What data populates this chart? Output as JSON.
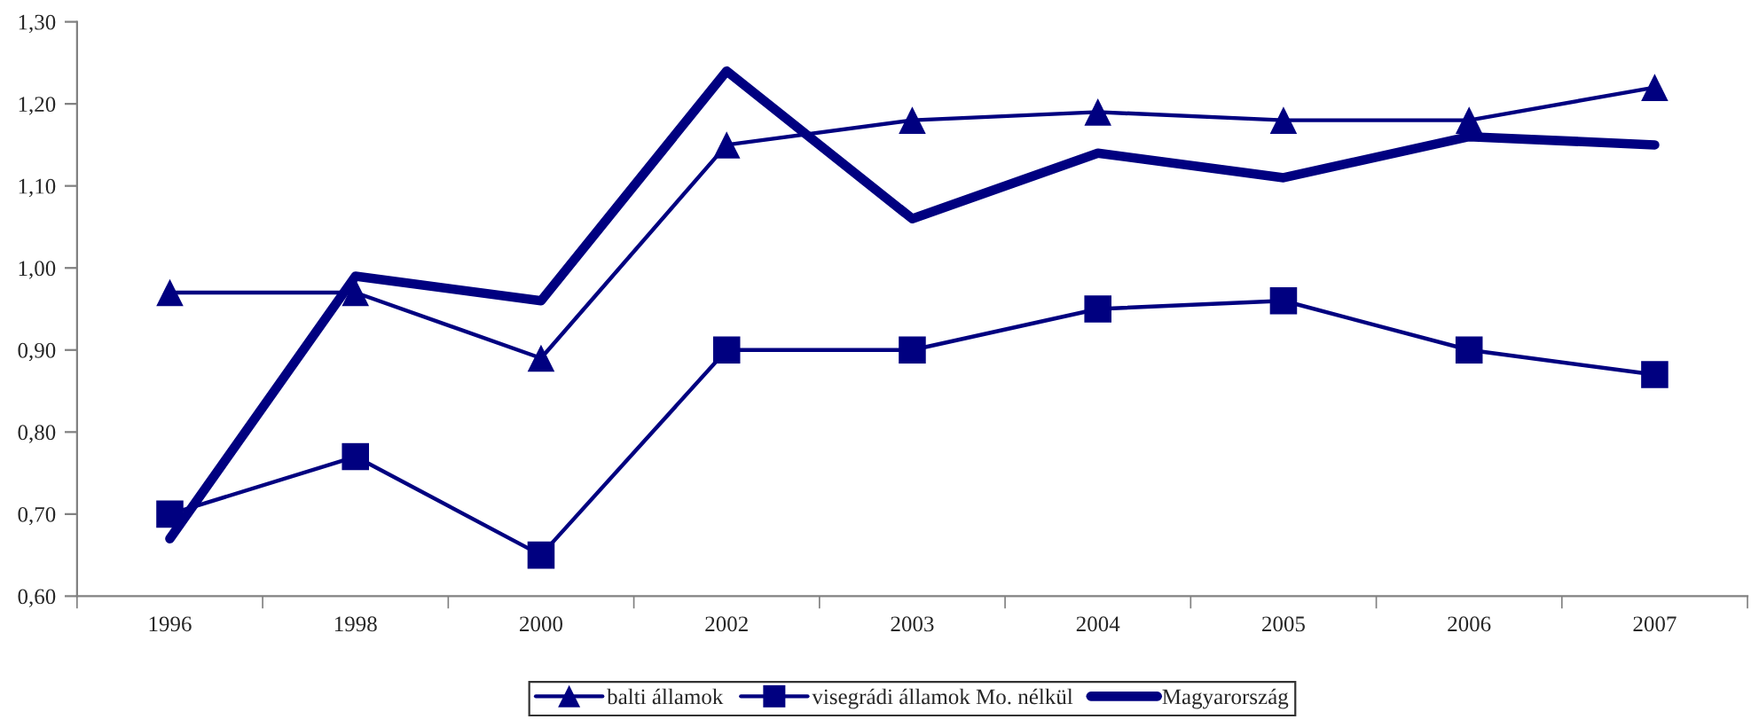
{
  "chart_data": {
    "type": "line",
    "categories": [
      "1996",
      "1998",
      "2000",
      "2002",
      "2003",
      "2004",
      "2005",
      "2006",
      "2007"
    ],
    "series": [
      {
        "name": "balti államok",
        "color": "#000080",
        "marker": "triangle",
        "values": [
          0.97,
          0.97,
          0.89,
          1.15,
          1.18,
          1.19,
          1.18,
          1.18,
          1.22
        ]
      },
      {
        "name": "visegrádi államok Mo. nélkül",
        "color": "#000080",
        "marker": "square",
        "values": [
          0.7,
          0.77,
          0.65,
          0.9,
          0.9,
          0.95,
          0.96,
          0.9,
          0.87
        ]
      },
      {
        "name": "Magyarország",
        "color": "#000080",
        "marker": "none",
        "values": [
          0.67,
          0.99,
          0.96,
          1.24,
          1.06,
          1.14,
          1.11,
          1.16,
          1.15
        ]
      }
    ],
    "ylim": [
      0.6,
      1.3
    ],
    "yticks": [
      {
        "value": 0.6,
        "label": "0,60"
      },
      {
        "value": 0.7,
        "label": "0,70"
      },
      {
        "value": 0.8,
        "label": "0,80"
      },
      {
        "value": 0.9,
        "label": "0,90"
      },
      {
        "value": 1.0,
        "label": "1,00"
      },
      {
        "value": 1.1,
        "label": "1,10"
      },
      {
        "value": 1.2,
        "label": "1,20"
      },
      {
        "value": 1.3,
        "label": "1,30"
      }
    ],
    "grid": false,
    "legend": "bottom"
  }
}
